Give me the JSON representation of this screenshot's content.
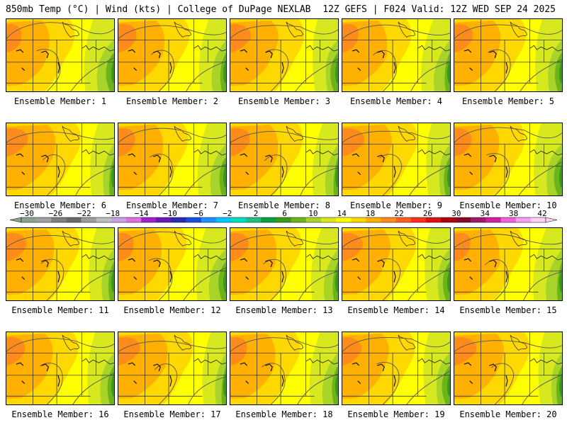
{
  "header": {
    "left": "850mb Temp (°C) | Wind (kts) | College of DuPage NEXLAB",
    "right": "12Z GEFS | F024 Valid: 12Z WED SEP 24 2025"
  },
  "members": [
    "Ensemble Member: 1",
    "Ensemble Member: 2",
    "Ensemble Member: 3",
    "Ensemble Member: 4",
    "Ensemble Member: 5",
    "Ensemble Member: 6",
    "Ensemble Member: 7",
    "Ensemble Member: 8",
    "Ensemble Member: 9",
    "Ensemble Member: 10",
    "Ensemble Member: 11",
    "Ensemble Member: 12",
    "Ensemble Member: 13",
    "Ensemble Member: 14",
    "Ensemble Member: 15",
    "Ensemble Member: 16",
    "Ensemble Member: 17",
    "Ensemble Member: 18",
    "Ensemble Member: 19",
    "Ensemble Member: 20"
  ],
  "colorbar": {
    "labels": [
      "-30",
      "-26",
      "-22",
      "-18",
      "-14",
      "-10",
      "-6",
      "-2",
      "2",
      "6",
      "10",
      "14",
      "18",
      "22",
      "26",
      "30",
      "34",
      "38",
      "42"
    ],
    "colors": [
      "#8ba48b",
      "#a0a0a0",
      "#7f7f7f",
      "#6b6b6b",
      "#9c9c9c",
      "#bdbdbd",
      "#c8a0e6",
      "#e070e0",
      "#a020d0",
      "#6a1ab4",
      "#2a2ab4",
      "#1450dc",
      "#1e90ff",
      "#00c8ff",
      "#00e0c0",
      "#20c080",
      "#0aa040",
      "#3c9a1a",
      "#6cb41a",
      "#a8d42a",
      "#d8e81e",
      "#ffff00",
      "#ffd800",
      "#ffb000",
      "#ff8c1a",
      "#ff6020",
      "#ff3020",
      "#e01010",
      "#b00010",
      "#880828",
      "#a0186c",
      "#d020a0",
      "#f060e0",
      "#f8a0f0",
      "#ffd0f8"
    ]
  },
  "map": {
    "color_base": "#ffff00",
    "color_warm": "#ffd800",
    "color_warmer": "#ffb000",
    "color_hot": "#ff8c1a",
    "color_cool": "#d8e81e",
    "color_cooler": "#a8d42a",
    "color_cold": "#6cb41a",
    "color_coldest": "#3c9a1a"
  }
}
